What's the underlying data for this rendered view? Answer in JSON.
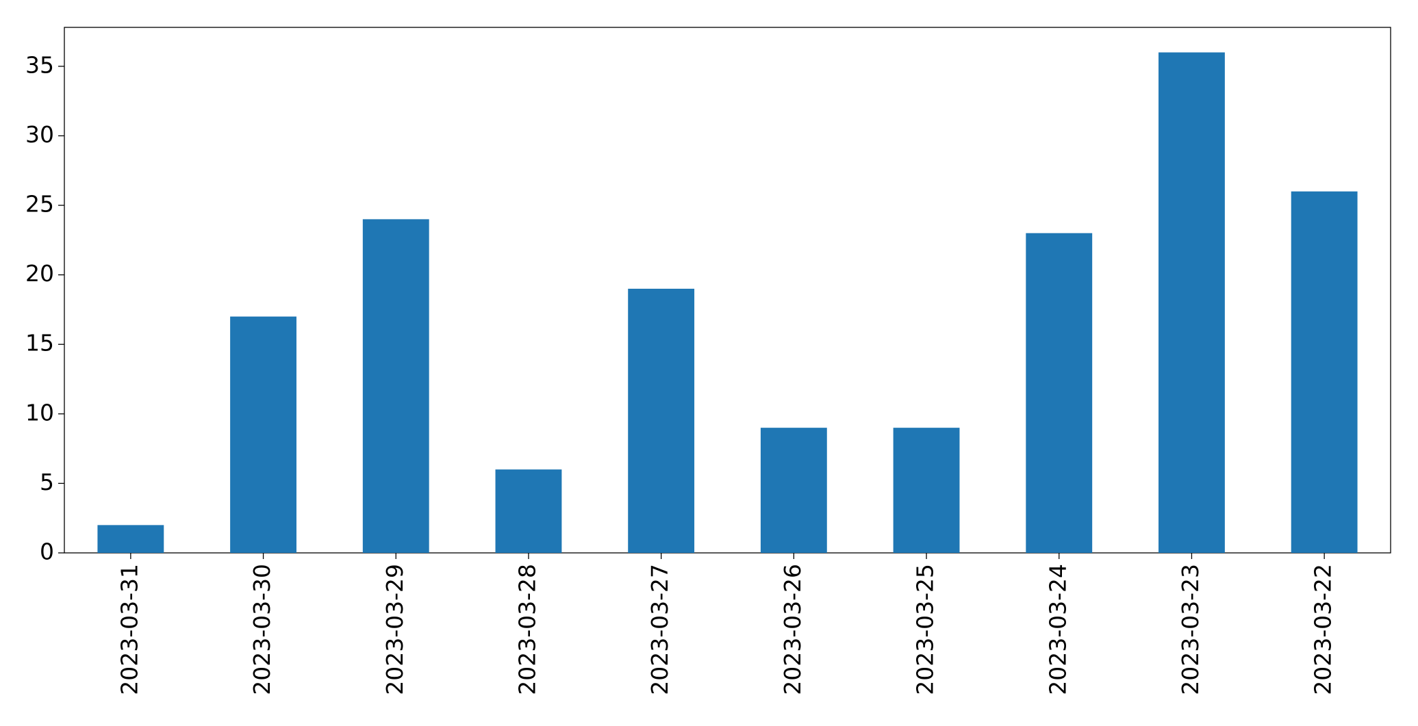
{
  "chart_data": {
    "type": "bar",
    "categories": [
      "2023-03-31",
      "2023-03-30",
      "2023-03-29",
      "2023-03-28",
      "2023-03-27",
      "2023-03-26",
      "2023-03-25",
      "2023-03-24",
      "2023-03-23",
      "2023-03-22"
    ],
    "values": [
      2,
      17,
      24,
      6,
      19,
      9,
      9,
      23,
      36,
      26
    ],
    "color": "#1f77b4",
    "ylim": [
      0,
      37.8
    ],
    "yticks": [
      0,
      5,
      10,
      15,
      20,
      25,
      30,
      35
    ],
    "grid": false
  }
}
